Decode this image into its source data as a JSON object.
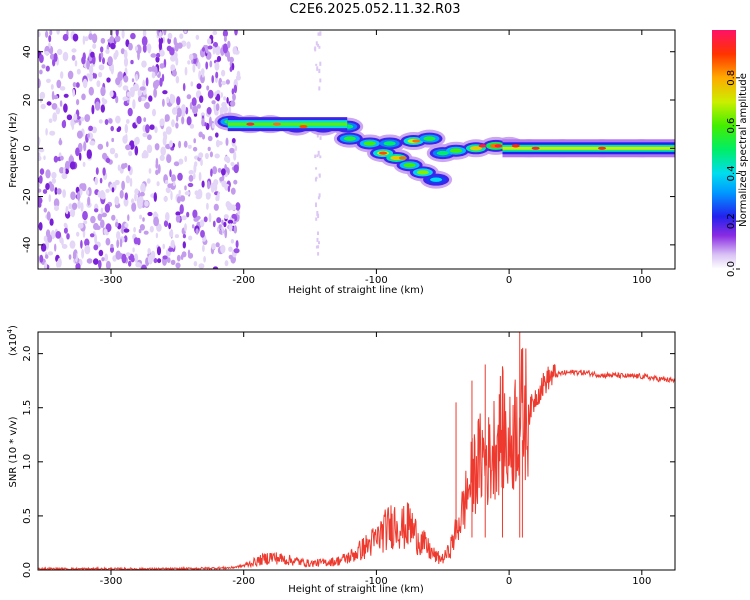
{
  "title": "C2E6.2025.052.11.32.R03",
  "chart_data": [
    {
      "type": "heatmap",
      "xlabel": "Height of straight line (km)",
      "ylabel": "Frequency (Hz)",
      "xlim": [
        -355,
        125
      ],
      "ylim": [
        -50,
        49
      ],
      "xticks": [
        -300,
        -200,
        -100,
        0,
        100
      ],
      "yticks": [
        -40,
        -20,
        0,
        20,
        40
      ],
      "colorbar": {
        "label": "Normalized spectral amplitude",
        "range": [
          0,
          1
        ],
        "ticks": [
          0.0,
          0.2,
          0.4,
          0.6,
          0.8
        ],
        "tick_labels": [
          "0.0",
          "0.2",
          "0.4",
          "0.6",
          "0.8"
        ]
      },
      "noise_region": {
        "x": [
          -355,
          -208
        ],
        "y": [
          -50,
          49
        ],
        "amplitude": 0.15
      },
      "ridge": [
        {
          "x": -210,
          "y": 11,
          "amp": 0.55
        },
        {
          "x": -195,
          "y": 10,
          "amp": 0.75
        },
        {
          "x": -180,
          "y": 10,
          "amp": 0.65
        },
        {
          "x": -160,
          "y": 9,
          "amp": 0.7
        },
        {
          "x": -140,
          "y": 9,
          "amp": 0.6
        },
        {
          "x": -122,
          "y": 9,
          "amp": 0.5
        },
        {
          "x": -120,
          "y": 4,
          "amp": 0.55
        },
        {
          "x": -105,
          "y": 2,
          "amp": 0.6
        },
        {
          "x": -95,
          "y": -2,
          "amp": 0.7
        },
        {
          "x": -85,
          "y": -4,
          "amp": 0.75
        },
        {
          "x": -75,
          "y": -7,
          "amp": 0.6
        },
        {
          "x": -65,
          "y": -10,
          "amp": 0.65
        },
        {
          "x": -55,
          "y": -13,
          "amp": 0.4
        },
        {
          "x": -90,
          "y": 2,
          "amp": 0.5
        },
        {
          "x": -72,
          "y": 3,
          "amp": 0.7
        },
        {
          "x": -60,
          "y": 4,
          "amp": 0.55
        },
        {
          "x": -50,
          "y": -2,
          "amp": 0.5
        },
        {
          "x": -40,
          "y": -1,
          "amp": 0.6
        },
        {
          "x": -25,
          "y": 0,
          "amp": 0.75
        },
        {
          "x": -10,
          "y": 1,
          "amp": 0.85
        },
        {
          "x": 0,
          "y": 1,
          "amp": 0.9
        },
        {
          "x": 15,
          "y": 0,
          "amp": 0.9
        },
        {
          "x": 40,
          "y": 0,
          "amp": 0.8
        },
        {
          "x": 70,
          "y": 0,
          "amp": 0.85
        },
        {
          "x": 100,
          "y": 0,
          "amp": 0.75
        },
        {
          "x": 125,
          "y": 0,
          "amp": 0.7
        }
      ]
    },
    {
      "type": "line",
      "xlabel": "Height of straight line (km)",
      "ylabel": "SNR (10 * v/v)",
      "multiplier_label": "(x10",
      "multiplier_exp": "4",
      "multiplier_close": ")",
      "xlim": [
        -355,
        125
      ],
      "ylim": [
        0,
        2.2
      ],
      "xticks": [
        -300,
        -200,
        -100,
        0,
        100
      ],
      "yticks": [
        0.0,
        0.5,
        1.0,
        1.5,
        2.0
      ],
      "ytick_labels": [
        "0.0",
        "0.5",
        "1.0",
        "1.5",
        "2.0"
      ],
      "color": "#ee3a2e",
      "series": [
        {
          "x": [
            -355,
            -300,
            -250,
            -210,
            -200,
            -190,
            -180,
            -170,
            -160,
            -150,
            -140,
            -130,
            -120,
            -110,
            -100,
            -95,
            -90,
            -85,
            -80,
            -75,
            -70,
            -65,
            -60,
            -55,
            -50,
            -45,
            -40,
            -35,
            -30,
            -25,
            -20,
            -15,
            -10,
            -5,
            0,
            5,
            10,
            15,
            20,
            25,
            30,
            40,
            50,
            60,
            70,
            80,
            90,
            100,
            110,
            125
          ],
          "y": [
            0.01,
            0.01,
            0.01,
            0.02,
            0.04,
            0.08,
            0.12,
            0.1,
            0.08,
            0.06,
            0.07,
            0.08,
            0.12,
            0.2,
            0.28,
            0.35,
            0.4,
            0.45,
            0.38,
            0.42,
            0.32,
            0.25,
            0.18,
            0.12,
            0.1,
            0.18,
            0.35,
            0.55,
            0.78,
            0.95,
            1.05,
            1.0,
            1.2,
            1.3,
            1.1,
            1.35,
            1.45,
            1.45,
            1.6,
            1.7,
            1.78,
            1.82,
            1.83,
            1.82,
            1.8,
            1.8,
            1.79,
            1.79,
            1.77,
            1.75
          ]
        }
      ]
    }
  ]
}
